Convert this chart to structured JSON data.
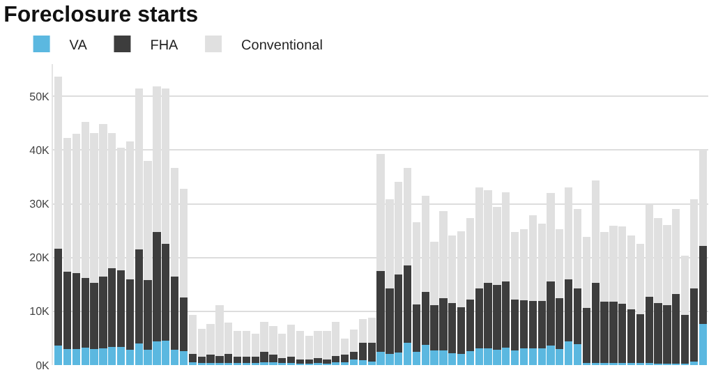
{
  "chart_data": {
    "type": "bar",
    "title": "Foreclosure starts",
    "stacked": true,
    "legend": "top left",
    "grid": "y",
    "ylim": [
      0,
      56000
    ],
    "yticks": [
      {
        "value": 0,
        "label": "0K"
      },
      {
        "value": 10000,
        "label": "10K"
      },
      {
        "value": 20000,
        "label": "20K"
      },
      {
        "value": 30000,
        "label": "30K"
      },
      {
        "value": 40000,
        "label": "40K"
      },
      {
        "value": 50000,
        "label": "50K"
      }
    ],
    "categories": [
      null,
      null,
      null,
      null,
      null,
      null,
      null,
      null,
      null,
      null,
      null,
      null,
      null,
      null,
      null,
      null,
      null,
      null,
      null,
      null,
      null,
      null,
      null,
      null,
      null,
      null,
      null,
      null,
      null,
      null,
      null,
      null,
      null,
      null,
      null,
      null,
      null,
      null,
      null,
      null,
      null,
      null,
      null,
      null,
      null,
      null,
      null,
      null,
      null,
      null,
      null,
      null,
      null,
      null,
      null,
      null,
      null,
      null,
      null,
      null,
      null,
      null,
      null,
      null,
      null,
      null,
      null,
      null,
      null,
      null,
      null,
      null,
      null
    ],
    "series": [
      {
        "name": "VA",
        "color": "#5bb8e0",
        "values": [
          3600,
          3000,
          3000,
          3200,
          3000,
          3100,
          3400,
          3400,
          2900,
          4000,
          2900,
          4400,
          4600,
          2900,
          2600,
          500,
          400,
          400,
          400,
          400,
          400,
          400,
          400,
          500,
          500,
          400,
          400,
          300,
          300,
          400,
          300,
          500,
          500,
          1000,
          900,
          700,
          2400,
          2100,
          2300,
          4100,
          2400,
          3700,
          2700,
          2700,
          2200,
          2100,
          2600,
          3100,
          3100,
          2900,
          3300,
          2700,
          3100,
          3100,
          3100,
          3600,
          3000,
          4400,
          3900,
          400,
          400,
          400,
          400,
          400,
          400,
          400,
          400,
          300,
          300,
          300,
          300,
          700,
          7600
        ]
      },
      {
        "name": "FHA",
        "color": "#3d3d3d",
        "values": [
          18000,
          14400,
          14100,
          13000,
          12300,
          13400,
          14600,
          14200,
          13000,
          17500,
          12900,
          20300,
          17900,
          13600,
          10000,
          1600,
          1100,
          1500,
          1300,
          1700,
          1200,
          1100,
          1100,
          1900,
          1500,
          900,
          1100,
          800,
          800,
          900,
          700,
          1200,
          1400,
          1500,
          3200,
          3500,
          15100,
          12100,
          14600,
          14400,
          8900,
          9900,
          8500,
          9800,
          9300,
          8600,
          9600,
          11200,
          12200,
          12000,
          12200,
          9500,
          8900,
          8800,
          8800,
          11900,
          9400,
          11500,
          10400,
          10200,
          14900,
          11400,
          11400,
          11000,
          10000,
          9100,
          12300,
          11200,
          10900,
          12900,
          9000,
          13500,
          14600
        ]
      },
      {
        "name": "Conventional",
        "color": "#e0e0e0",
        "values": [
          32100,
          24900,
          25900,
          29000,
          27900,
          28400,
          25200,
          22900,
          25700,
          29900,
          22200,
          27200,
          28900,
          20200,
          20200,
          7200,
          5200,
          5800,
          9500,
          5800,
          4800,
          4800,
          4300,
          5700,
          5300,
          4500,
          6000,
          5200,
          4300,
          5000,
          5300,
          6300,
          3000,
          4100,
          4400,
          4600,
          21800,
          16600,
          17200,
          18200,
          15300,
          17900,
          11700,
          16200,
          12600,
          14200,
          15100,
          18700,
          17200,
          14500,
          16600,
          12600,
          13300,
          16000,
          14400,
          16500,
          12900,
          17200,
          14700,
          13300,
          19000,
          12900,
          14100,
          14400,
          13700,
          13100,
          17300,
          15900,
          14800,
          15800,
          11100,
          16700,
          17900
        ]
      }
    ]
  }
}
